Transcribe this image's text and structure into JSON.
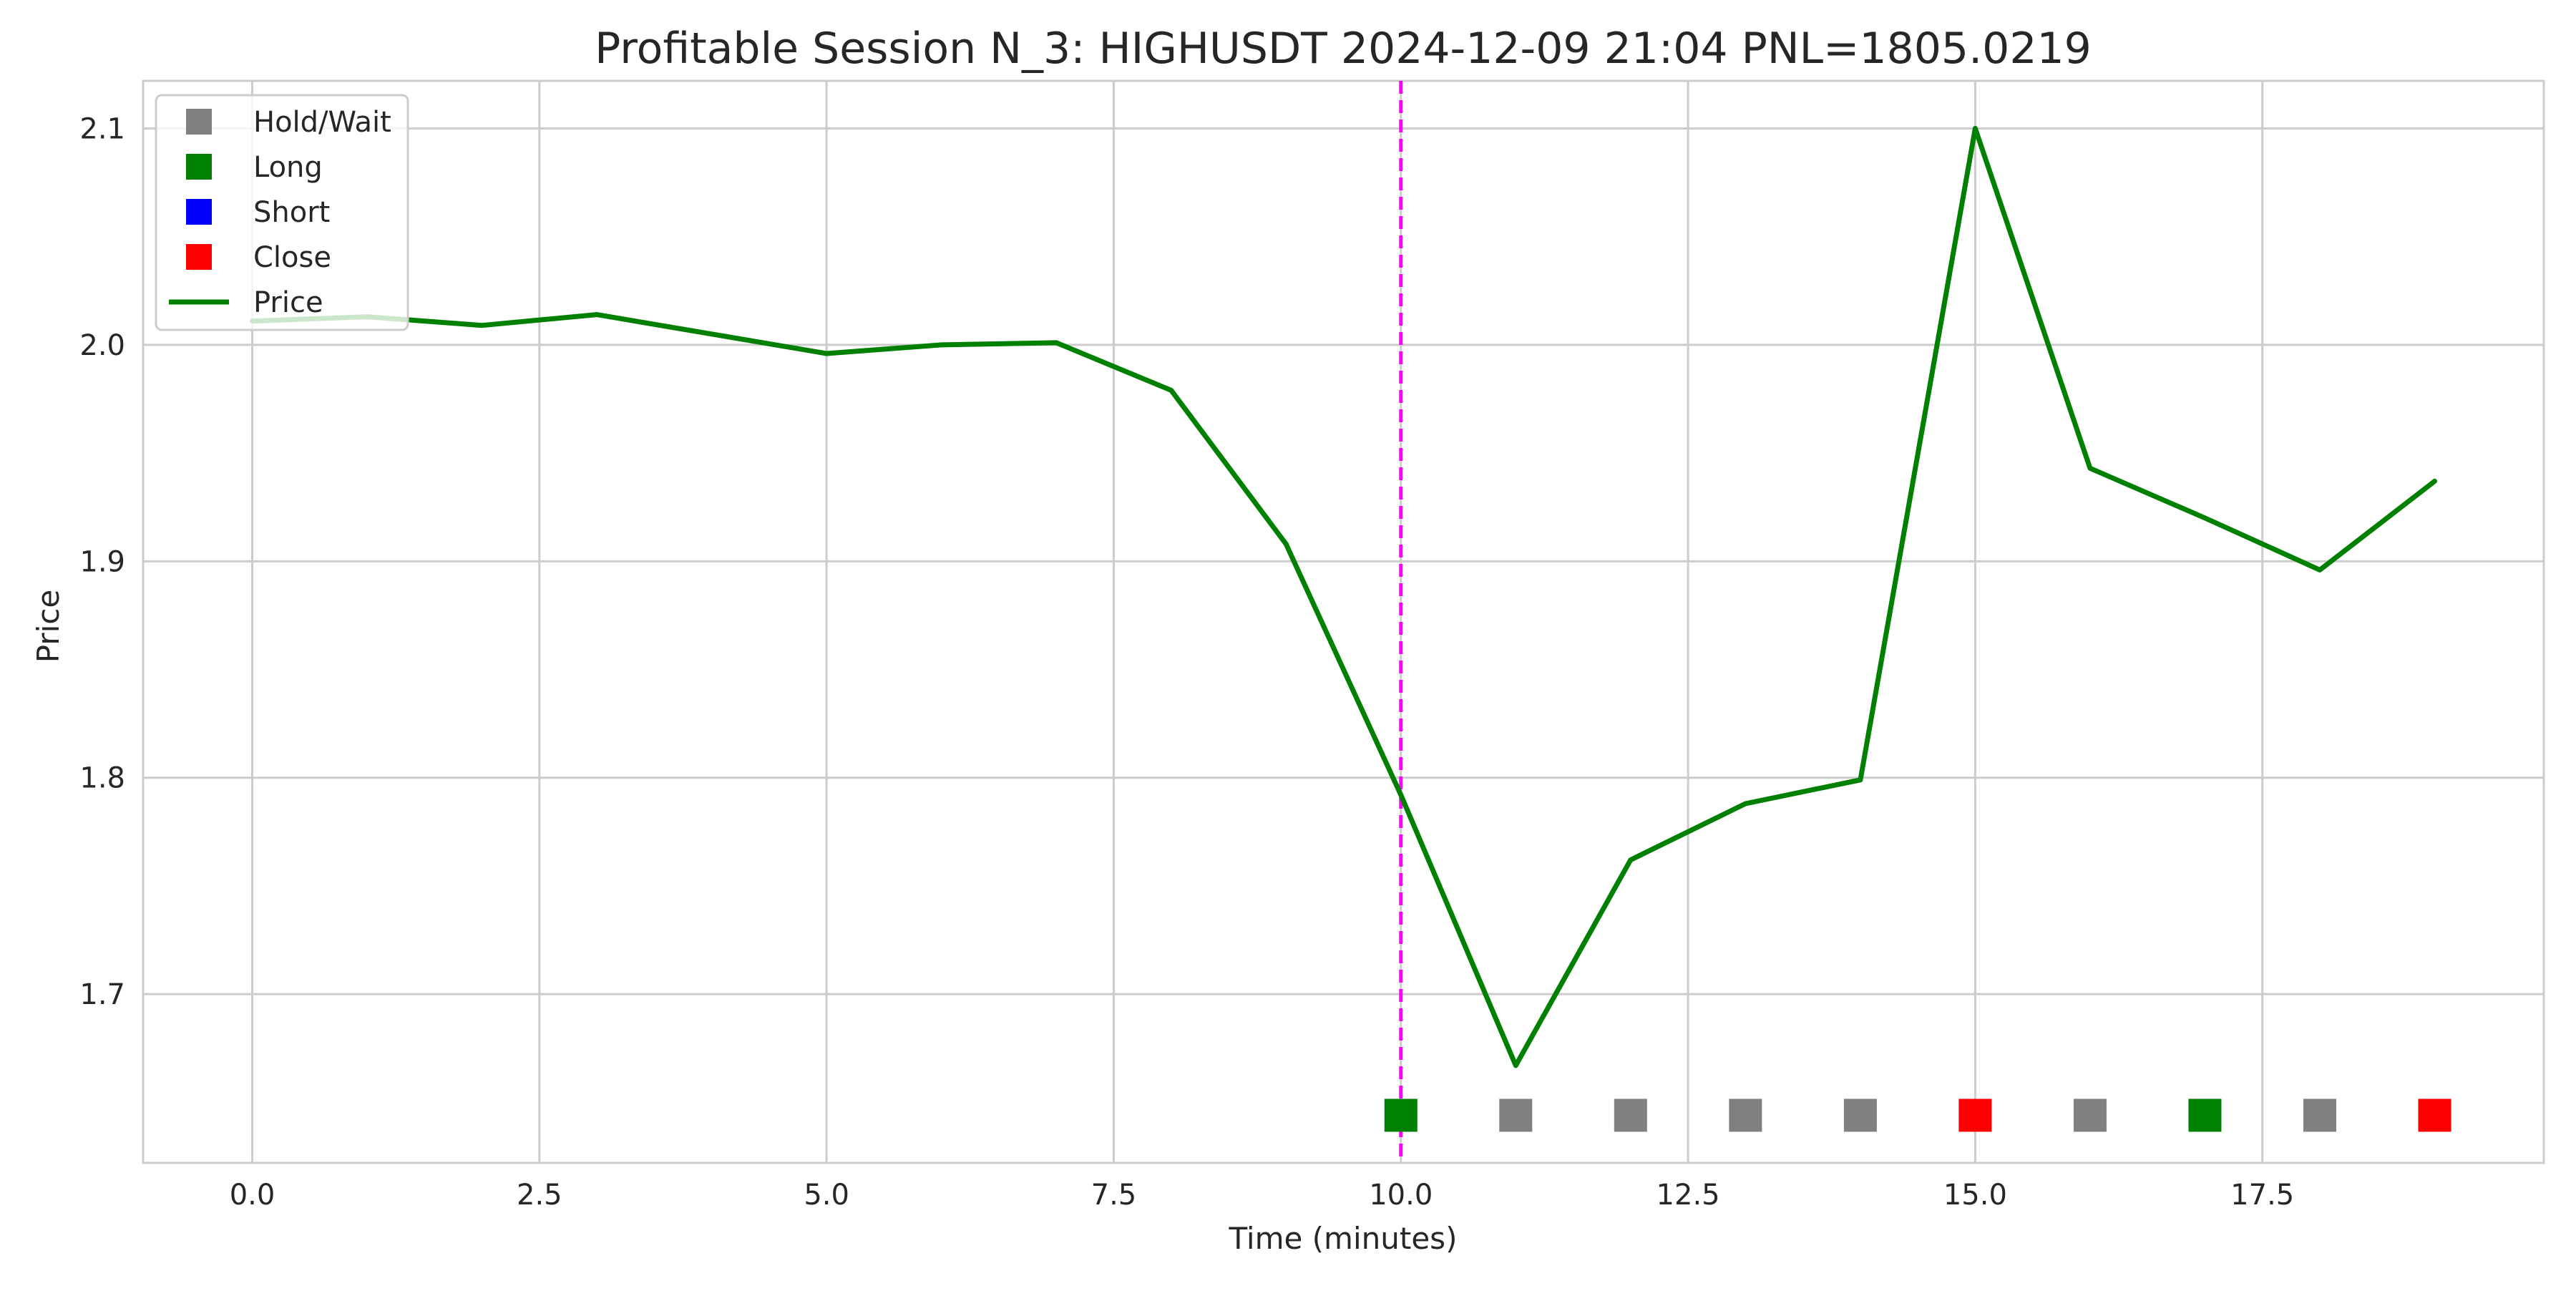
{
  "chart_data": {
    "type": "line",
    "title": "Profitable Session N_3: HIGHUSDT 2024-12-09 21:04  PNL=1805.0219",
    "xlabel": "Time (minutes)",
    "ylabel": "Price",
    "xlim": [
      -0.95,
      19.95
    ],
    "ylim": [
      1.622,
      2.122
    ],
    "x_ticks": [
      0.0,
      2.5,
      5.0,
      7.5,
      10.0,
      12.5,
      15.0,
      17.5
    ],
    "x_tick_labels": [
      "0.0",
      "2.5",
      "5.0",
      "7.5",
      "10.0",
      "12.5",
      "15.0",
      "17.5"
    ],
    "y_ticks": [
      1.7,
      1.8,
      1.9,
      2.0,
      2.1
    ],
    "y_tick_labels": [
      "1.7",
      "1.8",
      "1.9",
      "2.0",
      "2.1"
    ],
    "grid": true,
    "legend_position": "top-left",
    "series": [
      {
        "name": "Price",
        "color": "#008000",
        "x": [
          0,
          1,
          2,
          3,
          4,
          5,
          6,
          7,
          8,
          9,
          10,
          11,
          12,
          13,
          14,
          15,
          16,
          17,
          18,
          19
        ],
        "y": [
          2.011,
          2.013,
          2.009,
          2.014,
          2.005,
          1.996,
          2.0,
          2.001,
          1.979,
          1.908,
          1.792,
          1.667,
          1.762,
          1.788,
          1.799,
          2.1,
          1.943,
          1.92,
          1.896,
          1.937
        ]
      }
    ],
    "actions": {
      "y": 1.644,
      "points": [
        {
          "x": 10,
          "action": "Long"
        },
        {
          "x": 11,
          "action": "Hold/Wait"
        },
        {
          "x": 12,
          "action": "Hold/Wait"
        },
        {
          "x": 13,
          "action": "Hold/Wait"
        },
        {
          "x": 14,
          "action": "Hold/Wait"
        },
        {
          "x": 15,
          "action": "Close"
        },
        {
          "x": 16,
          "action": "Hold/Wait"
        },
        {
          "x": 17,
          "action": "Long"
        },
        {
          "x": 18,
          "action": "Hold/Wait"
        },
        {
          "x": 19,
          "action": "Close"
        }
      ]
    },
    "vertical_line": {
      "x": 10,
      "color": "#ff00ff",
      "style": "dashed"
    },
    "legend": [
      {
        "label": "Hold/Wait",
        "marker": "square",
        "color": "#808080"
      },
      {
        "label": "Long",
        "marker": "square",
        "color": "#008000"
      },
      {
        "label": "Short",
        "marker": "square",
        "color": "#0000ff"
      },
      {
        "label": "Close",
        "marker": "square",
        "color": "#ff0000"
      },
      {
        "label": "Price",
        "marker": "line",
        "color": "#008000"
      }
    ],
    "action_colors": {
      "Hold/Wait": "#808080",
      "Long": "#008000",
      "Short": "#0000ff",
      "Close": "#ff0000"
    }
  }
}
